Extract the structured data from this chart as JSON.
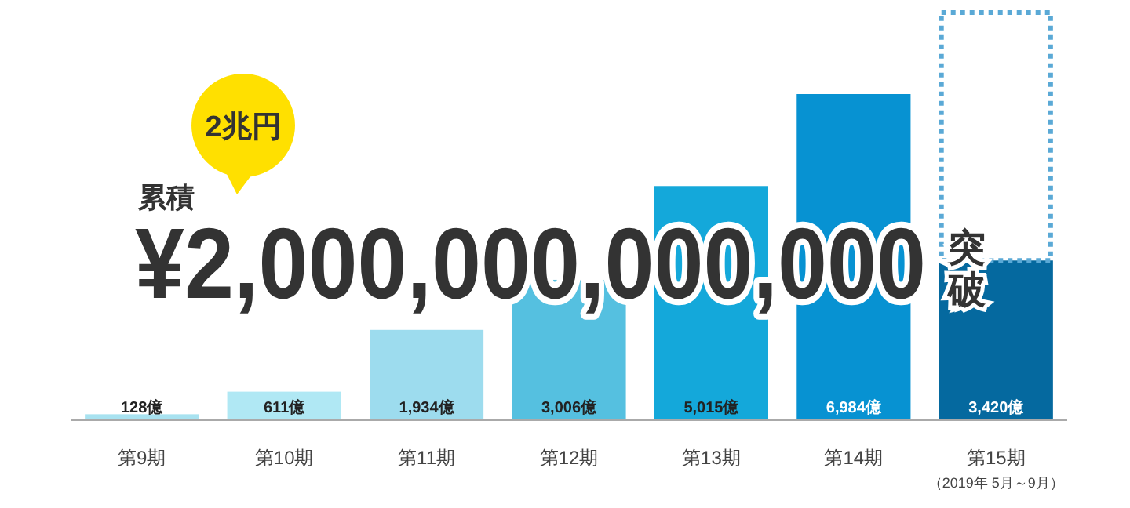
{
  "chart_data": {
    "type": "bar",
    "categories": [
      "第9期",
      "第10期",
      "第11期",
      "第12期",
      "第13期",
      "第14期",
      "第15期"
    ],
    "values": [
      128,
      611,
      1934,
      3006,
      5015,
      6984,
      3420
    ],
    "colors": [
      "#a8e2f0",
      "#b0e8f4",
      "#9ddcee",
      "#55c0e0",
      "#14a8da",
      "#0792d2",
      "#05699f"
    ],
    "value_labels": [
      "128億",
      "611億",
      "1,934億",
      "3,006億",
      "5,015億",
      "6,984億",
      "3,420億"
    ],
    "annotations": [
      "2兆円",
      "累積",
      "¥2,000,000,000,000",
      "突破",
      "（2019年 5月～9月）"
    ]
  }
}
